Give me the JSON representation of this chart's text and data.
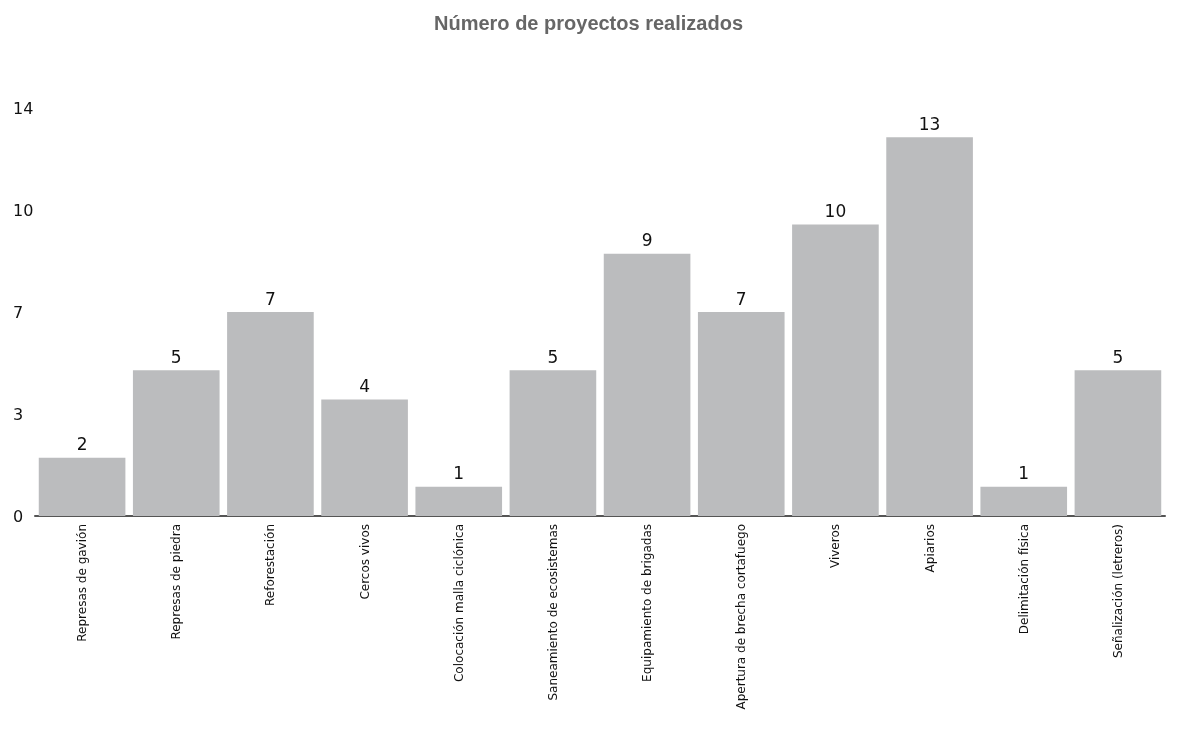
{
  "chart_data": {
    "type": "bar",
    "title": "Número de proyectos realizados",
    "categories": [
      "Represas de gavión",
      "Represas de piedra",
      "Reforestación",
      "Cercos vivos",
      "Colocación malla ciclónica",
      "Saneamiento de ecosistemas",
      "Equipamiento de brigadas",
      "Apertura de brecha cortafuego",
      "Viveros",
      "Apiarios",
      "Delimitación física",
      "Señalización (letreros)"
    ],
    "values": [
      2,
      5,
      7,
      4,
      1,
      5,
      9,
      7,
      10,
      13,
      1,
      5
    ],
    "color": "#bbbcbe",
    "ylim": [
      0,
      14
    ],
    "yticks": [
      0,
      {
        "value": 3.5,
        "label": "3"
      },
      7,
      {
        "value": 10.5,
        "label": "10"
      },
      14
    ],
    "data_labels": true,
    "grid": false
  }
}
